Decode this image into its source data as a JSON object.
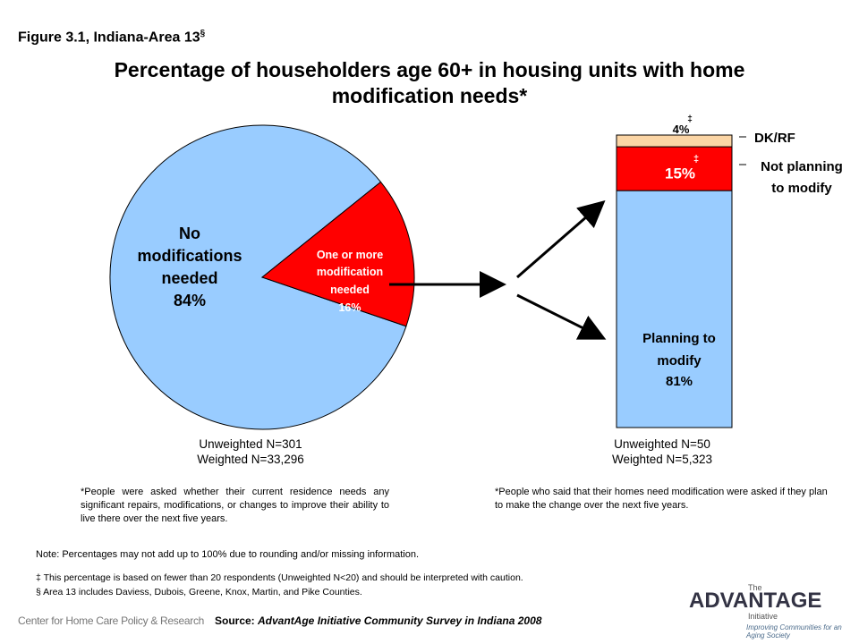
{
  "figure_label": "Figure 3.1, Indiana-Area 13",
  "figure_label_sup": "§",
  "title_line1": "Percentage of householders age 60+ in housing units with home",
  "title_line2": "modification needs*",
  "chart_data": [
    {
      "type": "pie",
      "slices": [
        {
          "name": "No modifications needed",
          "value": 84,
          "label": "84%",
          "color": "#99ccff"
        },
        {
          "name": "One or more modification needed",
          "value": 16,
          "label": "16%",
          "color": "#ff0000"
        }
      ],
      "label_no_mod": [
        "No",
        "modifications",
        "needed",
        "84%"
      ],
      "label_mod": [
        "One or more",
        "modification",
        "needed",
        "16%"
      ]
    },
    {
      "type": "bar",
      "stacked": true,
      "segments": [
        {
          "name": "Planning to modify",
          "value": 81,
          "label": "81%",
          "color": "#99ccff"
        },
        {
          "name": "Not planning to modify",
          "value": 15,
          "label": "15%",
          "color": "#ff0000",
          "flag": "‡"
        },
        {
          "name": "DK/RF",
          "value": 4,
          "label": "4%",
          "color": "#fbd5a5",
          "flag": "‡"
        }
      ],
      "label_planning": [
        "Planning to",
        "modify",
        "81%"
      ],
      "legend": [
        "DK/RF",
        "Not planning",
        "to modify"
      ]
    }
  ],
  "pie_n": {
    "unweighted": "Unweighted N=301",
    "weighted": "Weighted N=33,296"
  },
  "bar_n": {
    "unweighted": "Unweighted N=50",
    "weighted": "Weighted N=5,323"
  },
  "footnote_left": "*People were asked whether their current residence needs any significant repairs, modifications, or changes to improve their ability to live there over the next five years.",
  "footnote_right": "*People who said that their homes need modification were asked if they plan to make the change over the next five years.",
  "note": "Note: Percentages may not add up to 100% due to rounding and/or missing information.",
  "note_dagger": "‡ This percentage is based on fewer than 20 respondents (Unweighted N<20) and should be interpreted with caution.",
  "note_section": "§ Area 13 includes Daviess, Dubois, Greene, Knox, Martin, and Pike Counties.",
  "source_prefix": "Source: ",
  "source_text": "AdvantAge Initiative Community Survey in Indiana 2008",
  "left_logo": "Center for Home Care Policy & Research",
  "right_logo": {
    "the": "The",
    "name": "ADVANTAGE",
    "initiative": "Initiative",
    "tagline": "Improving Communities for an Aging Society"
  }
}
